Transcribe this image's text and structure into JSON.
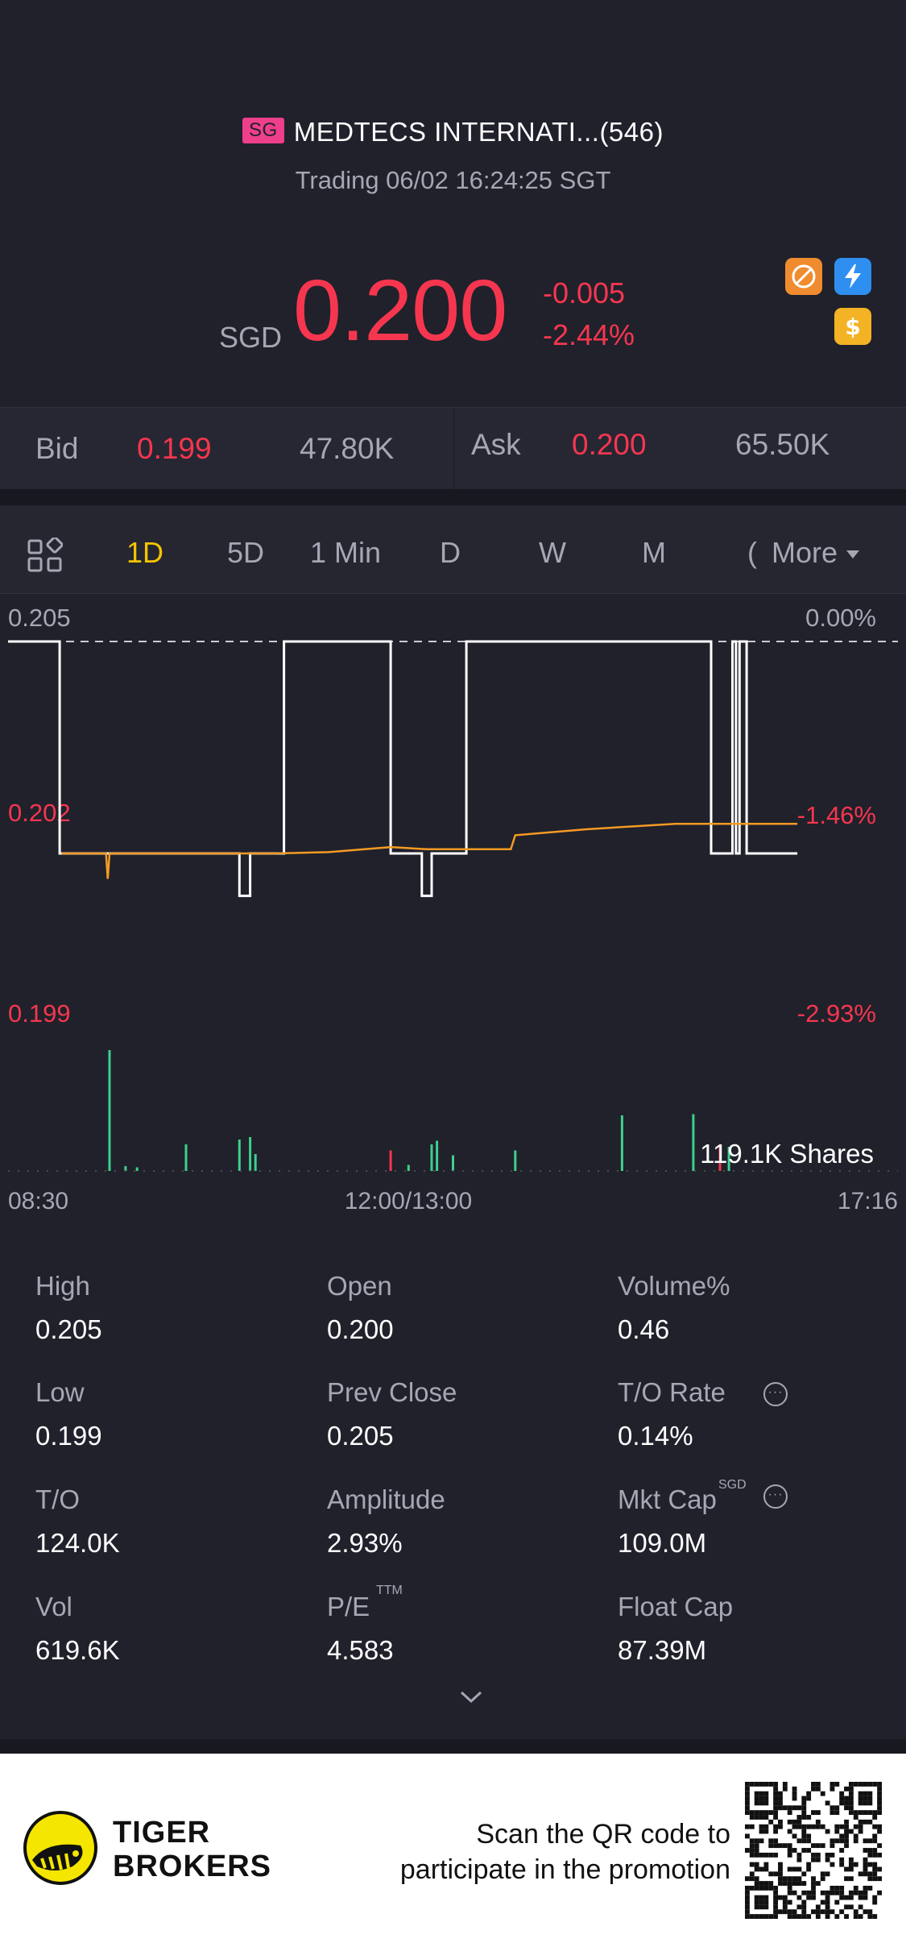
{
  "header": {
    "market_badge": "SG",
    "stock_name": "MEDTECS INTERNATI...(546)",
    "status": "Trading 06/02 16:24:25 SGT"
  },
  "quote": {
    "currency": "SGD",
    "price": "0.200",
    "change": "-0.005",
    "change_pct": "-2.44%",
    "icons": [
      "no-short-icon",
      "lightning-icon",
      "dollar-icon"
    ]
  },
  "bid_ask": {
    "bid_label": "Bid",
    "bid_price": "0.199",
    "bid_size": "47.80K",
    "ask_label": "Ask",
    "ask_price": "0.200",
    "ask_size": "65.50K"
  },
  "tabs": {
    "items": [
      "1D",
      "5D",
      "1 Min",
      "D",
      "W",
      "M"
    ],
    "active": "1D",
    "partial": "(",
    "more": "More"
  },
  "chart_data": {
    "type": "line",
    "y_labels_left": [
      "0.205",
      "0.202",
      "0.199"
    ],
    "y_labels_right": [
      "0.00%",
      "-1.46%",
      "-2.93%"
    ],
    "x_labels": [
      "08:30",
      "12:00/13:00",
      "17:16"
    ],
    "ylim": [
      0.199,
      0.205
    ],
    "volume_label": "119.1K Shares",
    "series": [
      {
        "color": "#ffffff",
        "values": [
          [
            0.0,
            0.205
          ],
          [
            0.058,
            0.205
          ],
          [
            0.058,
            0.2
          ],
          [
            0.26,
            0.2
          ],
          [
            0.26,
            0.199
          ],
          [
            0.272,
            0.199
          ],
          [
            0.272,
            0.2
          ],
          [
            0.31,
            0.2
          ],
          [
            0.31,
            0.205
          ],
          [
            0.43,
            0.205
          ],
          [
            0.43,
            0.2
          ],
          [
            0.465,
            0.2
          ],
          [
            0.465,
            0.199
          ],
          [
            0.476,
            0.199
          ],
          [
            0.476,
            0.2
          ],
          [
            0.515,
            0.2
          ],
          [
            0.515,
            0.205
          ],
          [
            0.79,
            0.205
          ],
          [
            0.79,
            0.2
          ],
          [
            0.814,
            0.2
          ],
          [
            0.814,
            0.205
          ],
          [
            0.818,
            0.205
          ],
          [
            0.818,
            0.2
          ],
          [
            0.822,
            0.2
          ],
          [
            0.822,
            0.205
          ],
          [
            0.83,
            0.205
          ],
          [
            0.83,
            0.2
          ],
          [
            0.887,
            0.2
          ]
        ]
      },
      {
        "color": "#f59a23",
        "values": [
          [
            0.06,
            0.2
          ],
          [
            0.11,
            0.2
          ],
          [
            0.112,
            0.1994
          ],
          [
            0.114,
            0.2
          ],
          [
            0.3,
            0.2
          ],
          [
            0.36,
            0.20003
          ],
          [
            0.43,
            0.20015
          ],
          [
            0.47,
            0.2001
          ],
          [
            0.565,
            0.2001
          ],
          [
            0.57,
            0.20043
          ],
          [
            0.65,
            0.20057
          ],
          [
            0.75,
            0.2007
          ],
          [
            0.887,
            0.2007
          ]
        ]
      }
    ],
    "volume": [
      {
        "x": 0.114,
        "v": 1.0,
        "c": "g"
      },
      {
        "x": 0.132,
        "v": 0.04,
        "c": "g"
      },
      {
        "x": 0.145,
        "v": 0.03,
        "c": "g"
      },
      {
        "x": 0.2,
        "v": 0.22,
        "c": "g"
      },
      {
        "x": 0.26,
        "v": 0.26,
        "c": "g"
      },
      {
        "x": 0.272,
        "v": 0.28,
        "c": "g"
      },
      {
        "x": 0.278,
        "v": 0.14,
        "c": "g"
      },
      {
        "x": 0.43,
        "v": 0.17,
        "c": "r"
      },
      {
        "x": 0.45,
        "v": 0.05,
        "c": "g"
      },
      {
        "x": 0.476,
        "v": 0.22,
        "c": "g"
      },
      {
        "x": 0.482,
        "v": 0.25,
        "c": "g"
      },
      {
        "x": 0.5,
        "v": 0.13,
        "c": "g"
      },
      {
        "x": 0.57,
        "v": 0.17,
        "c": "g"
      },
      {
        "x": 0.69,
        "v": 0.46,
        "c": "g"
      },
      {
        "x": 0.77,
        "v": 0.47,
        "c": "g"
      },
      {
        "x": 0.8,
        "v": 0.2,
        "c": "r"
      },
      {
        "x": 0.81,
        "v": 0.2,
        "c": "g"
      }
    ]
  },
  "stats": {
    "high_label": "High",
    "high": "0.205",
    "open_label": "Open",
    "open": "0.200",
    "volpct_label": "Volume%",
    "volpct": "0.46",
    "low_label": "Low",
    "low": "0.199",
    "prev_label": "Prev Close",
    "prev": "0.205",
    "torate_label": "T/O Rate",
    "torate": "0.14%",
    "to_label": "T/O",
    "to": "124.0K",
    "amp_label": "Amplitude",
    "amp": "2.93%",
    "mktcap_label": "Mkt Cap",
    "mktcap_sup": "SGD",
    "mktcap": "109.0M",
    "vol_label": "Vol",
    "vol": "619.6K",
    "pe_label": "P/E",
    "pe_sup": "TTM",
    "pe": "4.583",
    "float_label": "Float Cap",
    "float": "87.39M"
  },
  "promo": {
    "brand_line1": "TIGER",
    "brand_line2": "BROKERS",
    "text_line1": "Scan the QR code to",
    "text_line2": "participate in the promotion"
  },
  "colors": {
    "background": "#20212b",
    "up": "#3ecf8e",
    "down": "#f6364f",
    "accent": "#f5c400",
    "avg_line": "#f59a23"
  }
}
